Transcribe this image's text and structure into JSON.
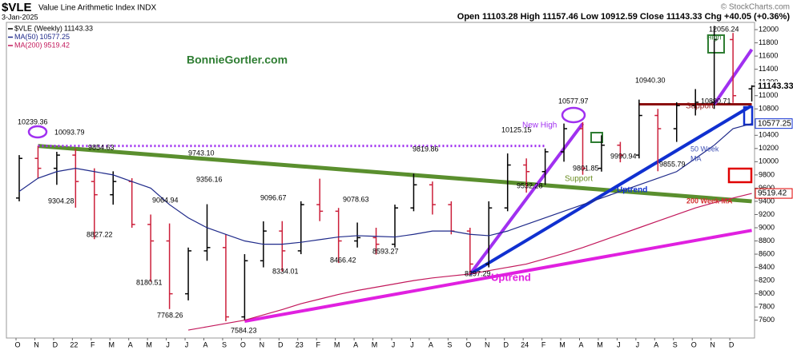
{
  "chart_data": {
    "type": "ohlc",
    "symbol": "$VLE",
    "title": "Value Line Arithmetic Index INDX",
    "date": "3-Jan-2025",
    "quote": "Open 11103.28  High 11157.46  Low 10912.59  Close 11143.33  Chg +40.05 (+0.36%)",
    "credit": "© StockCharts.com",
    "categories": [
      "O",
      "N",
      "D",
      "22",
      "F",
      "M",
      "A",
      "M",
      "J",
      "J",
      "A",
      "S",
      "O",
      "N",
      "D",
      "23",
      "F",
      "M",
      "A",
      "M",
      "J",
      "J",
      "A",
      "S",
      "O",
      "N",
      "D",
      "24",
      "F",
      "M",
      "A",
      "M",
      "J",
      "J",
      "A",
      "S",
      "O",
      "N",
      "D",
      null
    ],
    "series": [
      {
        "name": "$VLE (Weekly)",
        "up_color": "#000000",
        "down_color": "#cc1f3a",
        "open": [
          9450,
          10050,
          9900,
          10100,
          9700,
          9500,
          9700,
          9050,
          8800,
          8000,
          8650,
          8700,
          7650,
          8500,
          8950,
          8650,
          9350,
          9250,
          8800,
          8850,
          8750,
          9300,
          9650,
          9350,
          8950,
          8450,
          9300,
          9950,
          9850,
          10150,
          10500,
          9900,
          10250,
          10100,
          10700,
          10500,
          10850,
          10900,
          11850,
          11103.28
        ],
        "high": [
          10100,
          10239.36,
          10150,
          10200,
          9900,
          9854.63,
          9750,
          9200,
          9064.94,
          8700,
          9356.16,
          8900,
          8600,
          9096.67,
          9100,
          9400,
          9743.1,
          9300,
          9078.63,
          9000,
          9350,
          9819.86,
          9700,
          9400,
          9000,
          9400,
          10125.15,
          10050,
          10200,
          10577.97,
          10600,
          10400,
          10300,
          10940.3,
          10800,
          10900,
          11100,
          12056.24,
          11950,
          11157.46
        ],
        "low": [
          9400,
          9750,
          9650,
          9304.28,
          8827.22,
          9350,
          9000,
          8180.51,
          7768.26,
          7900,
          8500,
          7584.23,
          7600,
          8400,
          8334.01,
          8600,
          9100,
          8466.42,
          8700,
          8593.27,
          8700,
          9250,
          9200,
          8900,
          8297.29,
          8400,
          9250,
          9532.28,
          9650,
          10000,
          9801.85,
          9850,
          9990.94,
          10050,
          9855.79,
          10300,
          10700,
          10800,
          10890.71,
          10912.59
        ],
        "close": [
          10050,
          9900,
          10100,
          9700,
          9500,
          9700,
          9050,
          8800,
          8000,
          8650,
          8700,
          7650,
          8500,
          8950,
          8650,
          9350,
          9250,
          8800,
          8850,
          8750,
          9300,
          9650,
          9350,
          8950,
          8450,
          9300,
          9950,
          9850,
          10150,
          10500,
          9900,
          10250,
          10100,
          10700,
          10500,
          10850,
          10900,
          11850,
          11000,
          11143.33
        ]
      },
      {
        "name": "MA(50)",
        "color": "#1f2a8a",
        "values": [
          9550,
          9750,
          9850,
          9900,
          9850,
          9800,
          9700,
          9600,
          9350,
          9150,
          9000,
          8900,
          8800,
          8750,
          8750,
          8780,
          8820,
          8860,
          8880,
          8870,
          8860,
          8900,
          8950,
          8950,
          8900,
          8880,
          8950,
          9050,
          9150,
          9250,
          9350,
          9450,
          9550,
          9650,
          9750,
          9850,
          10050,
          10250,
          10500,
          10577.25
        ]
      },
      {
        "name": "MA(200)",
        "color": "#c2185b",
        "values": [
          null,
          null,
          null,
          null,
          null,
          null,
          null,
          null,
          null,
          7450,
          7500,
          7550,
          7600,
          7680,
          7760,
          7850,
          7920,
          7990,
          8050,
          8100,
          8150,
          8200,
          8240,
          8270,
          8300,
          8350,
          8400,
          8450,
          8530,
          8610,
          8700,
          8800,
          8900,
          9000,
          9100,
          9200,
          9300,
          9380,
          9450,
          9519.42
        ]
      }
    ],
    "ylim": [
      7330,
      12110
    ],
    "yticks": [
      7600,
      7800,
      8000,
      8200,
      8400,
      8600,
      8800,
      9000,
      9200,
      9400,
      9600,
      9800,
      10000,
      10200,
      10400,
      10600,
      10800,
      11000,
      11200,
      11400,
      11600,
      11800,
      12000
    ],
    "grid": false,
    "price_labels": [
      10239.36,
      10093.79,
      9854.63,
      9304.28,
      8827.22,
      9356.16,
      9064.94,
      8180.51,
      7768.26,
      7584.23,
      {
        "value": 9743.1,
        "label": "9743.10"
      },
      9096.67,
      8334.01,
      9078.63,
      8466.42,
      8593.27,
      9819.86,
      9532.28,
      10125.15,
      8297.29,
      10577.97,
      9801.85,
      9990.94,
      {
        "value": 10940.3,
        "label": "10940.30"
      },
      9855.79,
      12056.24,
      10890.71
    ],
    "trendlines": [
      {
        "color": "#5a8f2e",
        "width": 5,
        "dash": false,
        "from": [
          1,
          10239.36
        ],
        "to": [
          39,
          9400
        ]
      },
      {
        "color": "#e020e0",
        "width": 4,
        "dash": false,
        "from": [
          12,
          7584.23
        ],
        "to": [
          39,
          8960
        ]
      },
      {
        "color": "#a030f0",
        "width": 4,
        "dash": false,
        "from": [
          24,
          8297.29
        ],
        "to": [
          30,
          10577.97
        ]
      },
      {
        "color": "#1030d0",
        "width": 4,
        "dash": false,
        "from": [
          24,
          8297.29
        ],
        "to": [
          39,
          10850
        ]
      },
      {
        "color": "#a030f0",
        "width": 3,
        "dash": true,
        "from": [
          1,
          10239.36
        ],
        "to": [
          28,
          10239.36
        ]
      },
      {
        "color": "#8b1010",
        "width": 3,
        "dash": false,
        "from": [
          33,
          10870
        ],
        "to": [
          39,
          10870
        ]
      },
      {
        "color": "#a030f0",
        "width": 4,
        "dash": false,
        "from": [
          37,
          10870
        ],
        "to": [
          39,
          11700
        ]
      }
    ],
    "annotations": [
      {
        "text": "BonnieGortler.com",
        "color": "#2e7d32"
      },
      {
        "text": "New High",
        "color": "#a030f0"
      },
      {
        "text": "Support",
        "color": "#6b8e23"
      },
      {
        "text": "Uptrend",
        "color": "#1030d0"
      },
      {
        "text": "Uptrend",
        "color": "#e020e0"
      },
      {
        "text": "Support",
        "color": "#8b1010"
      },
      {
        "text": "50 Week",
        "color": "#3f51b5"
      },
      {
        "text": "MA",
        "color": "#3f51b5"
      },
      {
        "text": "200 Week MA",
        "color": "#d32f2f"
      },
      {
        "text": "High",
        "color": "#2e7d32"
      }
    ]
  }
}
